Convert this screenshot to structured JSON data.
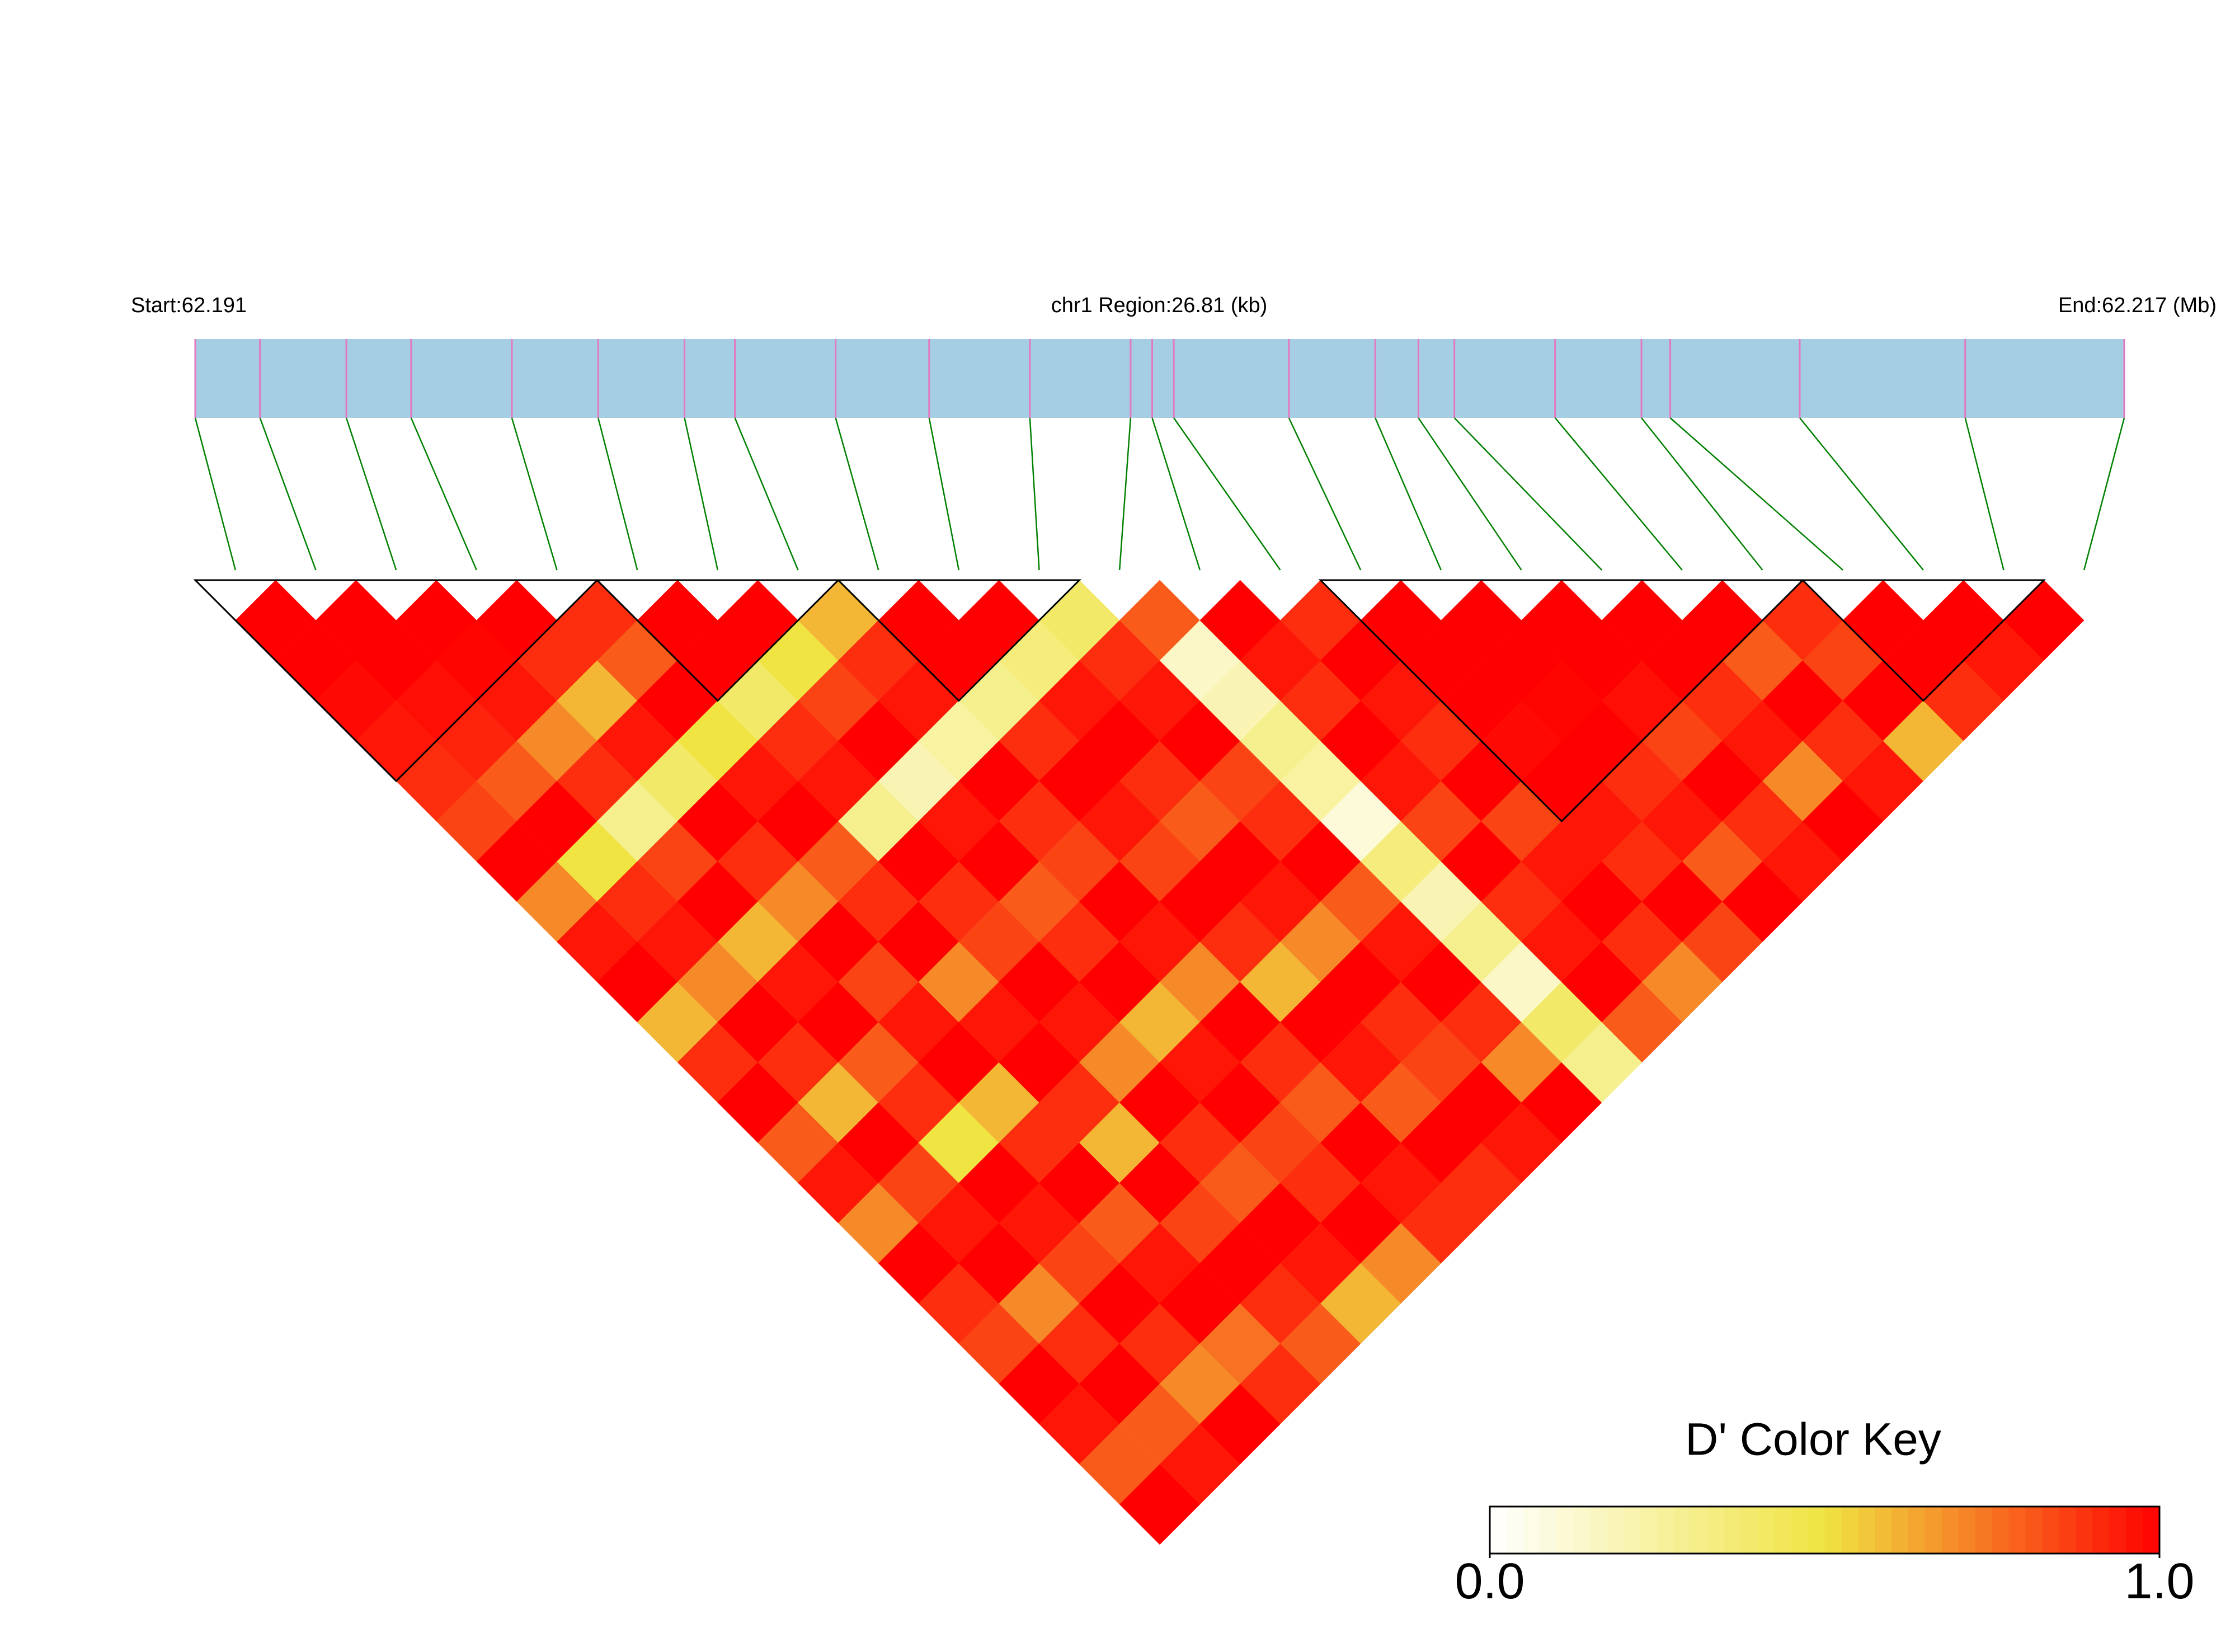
{
  "chart_data": {
    "type": "ld_heatmap",
    "start_label": "Start:62.191",
    "region_label": "chr1 Region:26.81 (kb)",
    "end_label": "End:62.217 (Mb)",
    "xlim": [
      0,
      26.81
    ],
    "positions": [
      0,
      0.9,
      2.1,
      3.0,
      4.4,
      5.6,
      6.8,
      7.5,
      8.9,
      10.2,
      11.6,
      13.0,
      13.3,
      13.6,
      15.2,
      16.4,
      17.0,
      17.5,
      18.9,
      20.1,
      20.5,
      22.3,
      24.6,
      26.81
    ],
    "track_color": "#a6cee3",
    "snp_color": "#e377c2",
    "link_color": "#008000",
    "block_color": "#000000",
    "dprime": [
      [
        1,
        1,
        0.98,
        0.95,
        0.9,
        0.85,
        1,
        0.7,
        0.95,
        1,
        0.6,
        0.9,
        1,
        0.8,
        0.95,
        0.7,
        1,
        0.9,
        0.85,
        1,
        0.95,
        0.8,
        1
      ],
      [
        1,
        1,
        0.97,
        0.92,
        0.8,
        1,
        0.5,
        0.9,
        0.95,
        0.7,
        1,
        0.9,
        0.6,
        1,
        0.85,
        0.95,
        1,
        0.7,
        0.9,
        1,
        0.8,
        0.95
      ],
      [
        1,
        0.99,
        0.95,
        0.7,
        0.9,
        0.3,
        0.85,
        1,
        0.6,
        0.95,
        1,
        0.8,
        0.9,
        0.5,
        1,
        0.95,
        0.85,
        1,
        0.9,
        0.7,
        1
      ],
      [
        1,
        0.9,
        0.6,
        0.95,
        0.4,
        1,
        0.9,
        0.7,
        1,
        0.85,
        0.95,
        1,
        0.6,
        0.9,
        1,
        0.8,
        0.95,
        1,
        0.75,
        0.9
      ],
      [
        0.9,
        0.8,
        1,
        0.5,
        0.95,
        1,
        0.8,
        0.9,
        1,
        0.7,
        0.95,
        1,
        0.9,
        0.6,
        1,
        0.85,
        1,
        0.9,
        0.8
      ],
      [
        1,
        1,
        0.4,
        0.9,
        0.95,
        0.3,
        1,
        0.9,
        0.85,
        1,
        0.95,
        0.7,
        1,
        0.9,
        0.8,
        1,
        0.95,
        0.6
      ],
      [
        1,
        0.5,
        0.85,
        1,
        0.2,
        0.95,
        1,
        0.8,
        0.9,
        1,
        0.6,
        0.95,
        1,
        0.85,
        0.9,
        1,
        0.7
      ],
      [
        0.6,
        0.9,
        0.95,
        0.25,
        1,
        0.9,
        0.85,
        1,
        0.95,
        0.7,
        1,
        0.9,
        0.8,
        1,
        0.95,
        0.9
      ],
      [
        1,
        1,
        0.3,
        0.9,
        1,
        0.95,
        0.85,
        1,
        0.9,
        0.6,
        1,
        0.95,
        0.8,
        1,
        0.9
      ],
      [
        1,
        0.35,
        0.95,
        1,
        0.9,
        0.8,
        1,
        0.95,
        0.7,
        1,
        0.9,
        0.85,
        1,
        0.95
      ],
      [
        0.4,
        0.9,
        0.95,
        1,
        0.85,
        0.9,
        1,
        0.8,
        0.95,
        1,
        0.9,
        0.7,
        1
      ],
      [
        0.8,
        0.15,
        0.2,
        0.3,
        0.25,
        0.1,
        0.35,
        0.2,
        0.3,
        0.15,
        0.4,
        0.3
      ],
      [
        1,
        0.95,
        0.9,
        1,
        0.95,
        0.85,
        1,
        0.9,
        0.95,
        1,
        0.8
      ],
      [
        0.9,
        1,
        0.95,
        0.9,
        1,
        0.85,
        0.95,
        1,
        0.9,
        0.7
      ],
      [
        1,
        1,
        1,
        0.98,
        1,
        0.95,
        0.9,
        1,
        0.85
      ],
      [
        1,
        1,
        0.99,
        1,
        0.9,
        0.95,
        0.8,
        1
      ],
      [
        1,
        1,
        0.97,
        0.85,
        1,
        0.9,
        0.95
      ],
      [
        1,
        1,
        0.9,
        0.95,
        0.7,
        1
      ],
      [
        1,
        0.8,
        1,
        0.9,
        0.95
      ],
      [
        0.9,
        0.85,
        1,
        0.6
      ],
      [
        1,
        1,
        0.9
      ],
      [
        1,
        0.95
      ],
      [
        1
      ]
    ],
    "blocks": [
      [
        0,
        4
      ],
      [
        5,
        7
      ],
      [
        8,
        10
      ],
      [
        14,
        19
      ],
      [
        20,
        22
      ]
    ],
    "color_key": {
      "title": "D' Color Key",
      "lim": [
        0,
        1
      ],
      "colors": [
        "#ffffff",
        "#f0e442",
        "#ff0000"
      ],
      "ticks": [
        {
          "value": 0,
          "label": "0.0"
        },
        {
          "value": 1,
          "label": "1.0"
        }
      ]
    }
  }
}
